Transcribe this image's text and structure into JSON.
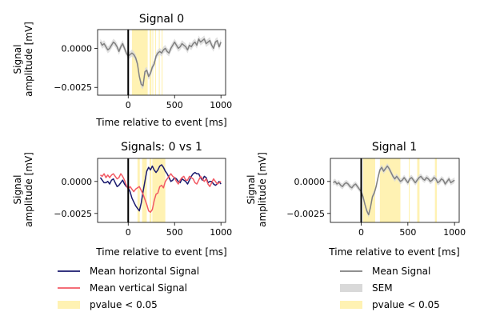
{
  "colors": {
    "mean": "#808080",
    "sem": "#d9d9d9",
    "sig": "#fff2b3",
    "horizontal": "#1a1a6e",
    "vertical": "#f25a64",
    "event": "#000000"
  },
  "chart_data": [
    {
      "type": "line",
      "title": "Signal 0",
      "xlabel": "Time relative to event [ms]",
      "ylabel": "Signal\namplitude [mV]",
      "xlim": [
        -330,
        1050
      ],
      "ylim": [
        -0.003,
        0.0012
      ],
      "xticks": [
        0,
        500,
        1000
      ],
      "yticks": [
        0.0,
        -0.0025
      ],
      "ytick_labels": [
        "0.0000",
        "−0.0025"
      ],
      "event_x": 0,
      "significant_intervals": [
        [
          40,
          210
        ],
        [
          230,
          250
        ],
        [
          260,
          270
        ],
        [
          290,
          300
        ],
        [
          330,
          340
        ],
        [
          360,
          370
        ]
      ],
      "series": [
        {
          "role": "mean",
          "x": [
            -300,
            -280,
            -260,
            -240,
            -220,
            -200,
            -180,
            -160,
            -140,
            -120,
            -100,
            -80,
            -60,
            -40,
            -20,
            0,
            20,
            40,
            60,
            80,
            100,
            120,
            140,
            160,
            180,
            200,
            220,
            240,
            260,
            280,
            300,
            320,
            340,
            360,
            380,
            400,
            420,
            440,
            460,
            480,
            500,
            520,
            540,
            560,
            580,
            600,
            620,
            640,
            660,
            680,
            700,
            720,
            740,
            760,
            780,
            800,
            820,
            840,
            860,
            880,
            900,
            920,
            940,
            960,
            980,
            1000
          ],
          "y": [
            0.0004,
            0.0002,
            0.0003,
            0.0001,
            -0.0001,
            0.0,
            0.0002,
            0.0004,
            0.0003,
            0.0001,
            -0.0002,
            0.0001,
            0.0003,
            0.0,
            -0.0003,
            -0.0005,
            -0.0004,
            -0.0003,
            -0.0004,
            -0.0006,
            -0.001,
            -0.0018,
            -0.0023,
            -0.0024,
            -0.0015,
            -0.0014,
            -0.0018,
            -0.0016,
            -0.0012,
            -0.001,
            -0.0005,
            -0.0003,
            -0.0002,
            -0.0003,
            -0.0001,
            0.0,
            -0.0002,
            -0.0003,
            0.0,
            0.0002,
            0.0004,
            0.0002,
            0.0,
            0.0001,
            0.0003,
            0.0002,
            0.0001,
            -0.0001,
            0.0002,
            0.0001,
            0.0003,
            0.0004,
            0.0002,
            0.0006,
            0.0004,
            0.0005,
            0.0006,
            0.0003,
            0.0004,
            0.0005,
            0.0002,
            0.0,
            0.0004,
            0.0005,
            0.0001,
            0.0004
          ],
          "sem": 0.00022
        }
      ]
    },
    {
      "type": "line",
      "title": "Signals: 0 vs 1",
      "xlabel": "Time relative to event [ms]",
      "ylabel": "Signal\namplitude [mV]",
      "xlim": [
        -330,
        1050
      ],
      "ylim": [
        -0.0032,
        0.0018
      ],
      "xticks": [
        0,
        500,
        1000
      ],
      "yticks": [
        0.0,
        -0.0025
      ],
      "ytick_labels": [
        "0.0000",
        "−0.0025"
      ],
      "event_x": 0,
      "significant_intervals": [
        [
          100,
          125
        ],
        [
          150,
          200
        ],
        [
          230,
          250
        ],
        [
          260,
          400
        ]
      ],
      "series": [
        {
          "role": "horizontal",
          "x": [
            -300,
            -280,
            -260,
            -240,
            -220,
            -200,
            -180,
            -160,
            -140,
            -120,
            -100,
            -80,
            -60,
            -40,
            -20,
            0,
            20,
            40,
            60,
            80,
            100,
            120,
            140,
            160,
            180,
            200,
            220,
            240,
            260,
            280,
            300,
            320,
            340,
            360,
            380,
            400,
            420,
            440,
            460,
            480,
            500,
            520,
            540,
            560,
            580,
            600,
            620,
            640,
            660,
            680,
            700,
            720,
            740,
            760,
            780,
            800,
            820,
            840,
            860,
            880,
            900,
            920,
            940,
            960,
            980,
            1000
          ],
          "y": [
            0.0003,
            0.0001,
            -0.0001,
            -0.0001,
            0.0,
            -0.0002,
            0.0001,
            0.0002,
            -0.0001,
            -0.0004,
            -0.0003,
            -0.0001,
            0.0001,
            -0.0002,
            -0.0004,
            -0.0005,
            -0.0008,
            -0.0013,
            -0.0016,
            -0.0019,
            -0.0021,
            -0.0023,
            -0.0017,
            -0.0008,
            0.0,
            0.0008,
            0.0011,
            0.0009,
            0.0012,
            0.0009,
            0.0007,
            0.0009,
            0.0012,
            0.0013,
            0.0011,
            0.0008,
            0.0006,
            0.0003,
            0.0,
            0.0001,
            0.0003,
            0.0002,
            0.0,
            -0.0001,
            0.0002,
            0.0001,
            0.0,
            -0.0002,
            0.0001,
            0.0004,
            0.0006,
            0.0007,
            0.0006,
            0.0006,
            0.0003,
            0.0001,
            0.0004,
            0.0003,
            -0.0001,
            0.0,
            0.0,
            -0.0002,
            -0.0003,
            -0.0002,
            0.0,
            -0.0002
          ]
        },
        {
          "role": "vertical",
          "x": [
            -300,
            -280,
            -260,
            -240,
            -220,
            -200,
            -180,
            -160,
            -140,
            -120,
            -100,
            -80,
            -60,
            -40,
            -20,
            0,
            20,
            40,
            60,
            80,
            100,
            120,
            140,
            160,
            180,
            200,
            220,
            240,
            260,
            280,
            300,
            320,
            340,
            360,
            380,
            400,
            420,
            440,
            460,
            480,
            500,
            520,
            540,
            560,
            580,
            600,
            620,
            640,
            660,
            680,
            700,
            720,
            740,
            760,
            780,
            800,
            820,
            840,
            860,
            880,
            900,
            920,
            940,
            960,
            980,
            1000
          ],
          "y": [
            0.0005,
            0.0004,
            0.0006,
            0.0003,
            0.0005,
            0.0003,
            0.0005,
            0.0006,
            0.0004,
            0.0002,
            0.0003,
            0.0006,
            0.0004,
            0.0001,
            -0.0003,
            -0.0006,
            -0.0004,
            -0.0006,
            -0.0008,
            -0.0006,
            -0.0005,
            -0.0004,
            -0.0007,
            -0.001,
            -0.0014,
            -0.0018,
            -0.0023,
            -0.0024,
            -0.0022,
            -0.0015,
            -0.001,
            -0.0009,
            -0.0004,
            -0.0003,
            -0.0005,
            0.0,
            0.0002,
            0.0004,
            0.0006,
            0.0004,
            0.0003,
            0.0,
            -0.0002,
            0.0001,
            0.0003,
            0.0004,
            0.0001,
            0.0001,
            0.0004,
            0.0003,
            0.0002,
            -0.0001,
            -0.0002,
            0.0001,
            0.0004,
            0.0002,
            0.0,
            0.0002,
            -0.0002,
            -0.0004,
            -0.0001,
            0.0002,
            0.0,
            -0.0002,
            -0.0001,
            0.0
          ]
        }
      ]
    },
    {
      "type": "line",
      "title": "Signal 1",
      "xlabel": "Time relative to event [ms]",
      "ylabel": "Signal\namplitude [mV]",
      "xlim": [
        -330,
        1050
      ],
      "ylim": [
        -0.0032,
        0.0018
      ],
      "xticks": [
        0,
        500,
        1000
      ],
      "yticks": [
        0.0,
        -0.0025
      ],
      "ytick_labels": [
        "0.0000",
        "−0.0025"
      ],
      "event_x": 0,
      "significant_intervals": [
        [
          20,
          150
        ],
        [
          200,
          420
        ],
        [
          510,
          520
        ],
        [
          600,
          625
        ],
        [
          790,
          810
        ]
      ],
      "series": [
        {
          "role": "mean",
          "x": [
            -300,
            -280,
            -260,
            -240,
            -220,
            -200,
            -180,
            -160,
            -140,
            -120,
            -100,
            -80,
            -60,
            -40,
            -20,
            0,
            20,
            40,
            60,
            80,
            100,
            120,
            140,
            160,
            180,
            200,
            220,
            240,
            260,
            280,
            300,
            320,
            340,
            360,
            380,
            400,
            420,
            440,
            460,
            480,
            500,
            520,
            540,
            560,
            580,
            600,
            620,
            640,
            660,
            680,
            700,
            720,
            740,
            760,
            780,
            800,
            820,
            840,
            860,
            880,
            900,
            920,
            940,
            960,
            980,
            1000
          ],
          "y": [
            -0.0001,
            0.0,
            -0.0002,
            -0.0001,
            -0.0003,
            -0.0004,
            -0.0002,
            -0.0001,
            -0.0002,
            -0.0004,
            -0.0005,
            -0.0003,
            -0.0002,
            -0.0004,
            -0.0006,
            -0.0008,
            -0.0012,
            -0.0018,
            -0.0023,
            -0.0026,
            -0.002,
            -0.0012,
            -0.0009,
            -0.0004,
            0.0003,
            0.0009,
            0.0011,
            0.0008,
            0.001,
            0.0012,
            0.001,
            0.0007,
            0.0004,
            0.0002,
            0.0004,
            0.0002,
            0.0,
            0.0001,
            0.0003,
            0.0001,
            -0.0001,
            0.0002,
            0.0003,
            0.0001,
            -0.0001,
            0.0001,
            0.0003,
            0.0004,
            0.0002,
            0.0001,
            0.0003,
            0.0002,
            0.0,
            0.0001,
            0.0003,
            0.0002,
            -0.0001,
            0.0,
            0.0002,
            0.0001,
            -0.0002,
            0.0,
            0.0002,
            -0.0001,
            0.0,
            0.0001
          ],
          "sem": 0.00022
        }
      ]
    }
  ],
  "legend_left": {
    "items": [
      {
        "label": "Mean horizontal Signal",
        "kind": "line",
        "color_key": "horizontal"
      },
      {
        "label": "Mean vertical Signal",
        "kind": "line",
        "color_key": "vertical"
      },
      {
        "label": "pvalue < 0.05",
        "kind": "patch",
        "color_key": "sig"
      }
    ]
  },
  "legend_right": {
    "items": [
      {
        "label": "Mean Signal",
        "kind": "line",
        "color_key": "mean"
      },
      {
        "label": "SEM",
        "kind": "patch",
        "color_key": "sem"
      },
      {
        "label": "pvalue < 0.05",
        "kind": "patch",
        "color_key": "sig"
      }
    ]
  }
}
